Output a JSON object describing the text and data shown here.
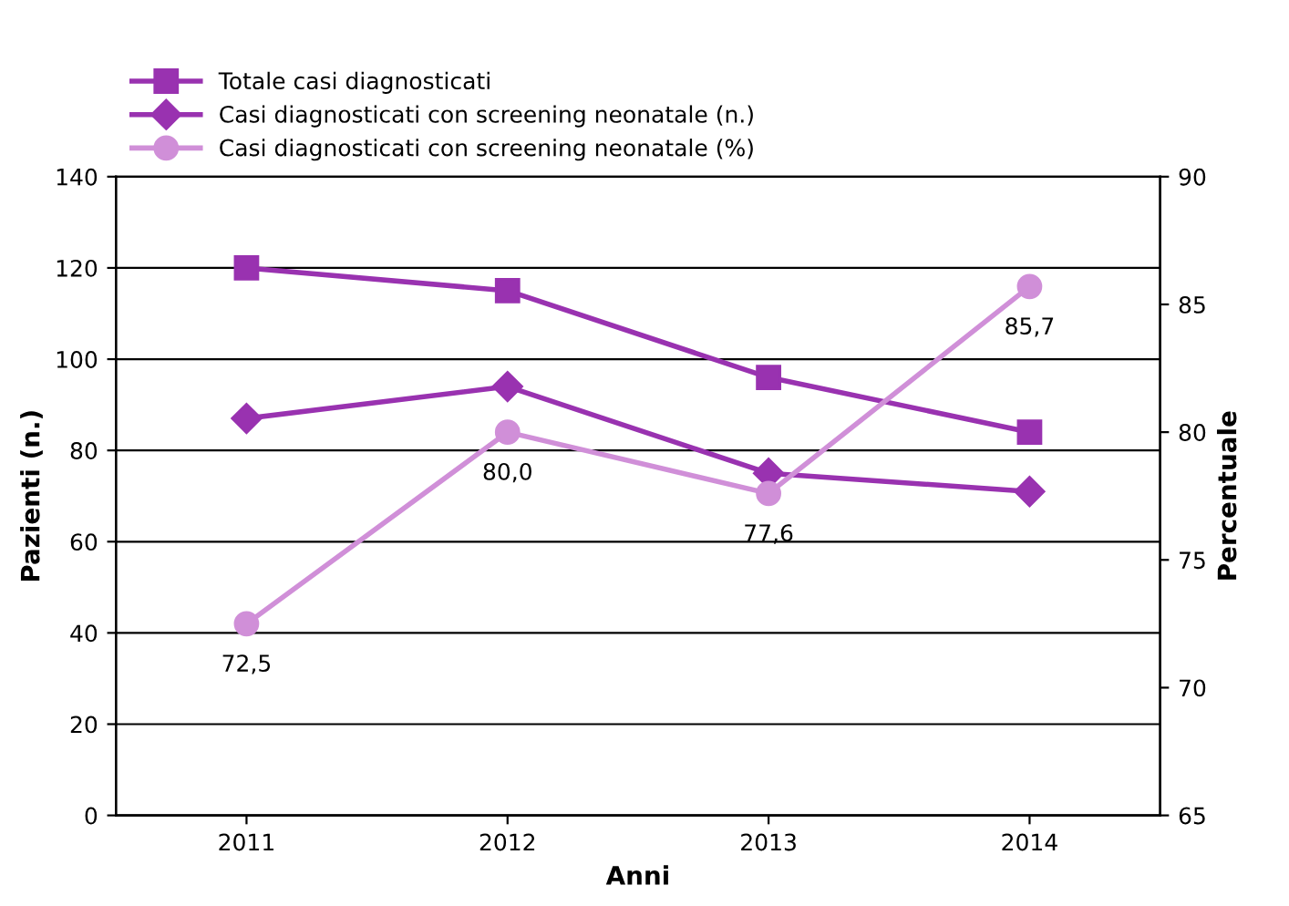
{
  "chart_data": {
    "type": "line",
    "xlabel": "Anni",
    "ylabel": "Pazienti (n.)",
    "y2label": "Percentuale",
    "categories": [
      "2011",
      "2012",
      "2013",
      "2014"
    ],
    "series": [
      {
        "name": "Totale casi diagnosticati",
        "color": "#9932b0",
        "marker": "square",
        "values": [
          120,
          115,
          96,
          84
        ]
      },
      {
        "name": "Casi diagnosticati con screening neonatale (n.)",
        "color": "#9932b0",
        "marker": "diamond",
        "values": [
          87,
          94,
          75,
          71
        ]
      },
      {
        "name": "Casi diagnosticati con screening neonatale (%)",
        "color": "#d08fd8",
        "marker": "circle",
        "axis": "y2",
        "values": [
          72.5,
          80.0,
          77.6,
          85.7
        ],
        "value_labels": [
          "72,5",
          "80,0",
          "77,6",
          "85,7"
        ]
      }
    ],
    "ylim": [
      0,
      140
    ],
    "yticks": [
      0,
      20,
      40,
      60,
      80,
      100,
      120,
      140
    ],
    "y2lim": [
      65,
      90
    ],
    "y2ticks": [
      65,
      70,
      75,
      80,
      85,
      90
    ],
    "grid": "y",
    "legend": "top left",
    "line_style": "solid"
  }
}
